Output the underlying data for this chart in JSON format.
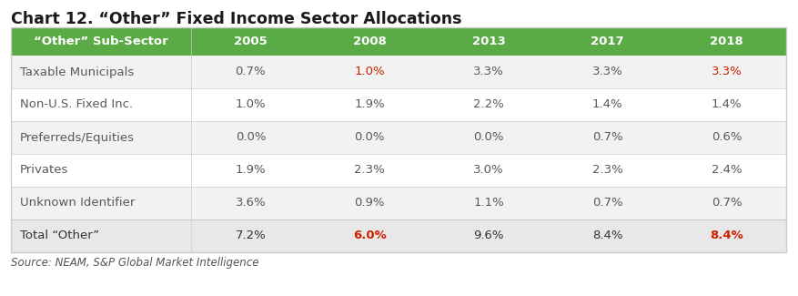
{
  "title": "Chart 12. “Other” Fixed Income Sector Allocations",
  "source": "Source: NEAM, S&P Global Market Intelligence",
  "col0_header": "“Other” Sub-Sector",
  "columns": [
    "2005",
    "2008",
    "2013",
    "2017",
    "2018"
  ],
  "rows": [
    {
      "label": "Taxable Municipals",
      "values": [
        "0.7%",
        "1.0%",
        "3.3%",
        "3.3%",
        "3.3%"
      ],
      "red_indices": [
        1,
        4
      ]
    },
    {
      "label": "Non-U.S. Fixed Inc.",
      "values": [
        "1.0%",
        "1.9%",
        "2.2%",
        "1.4%",
        "1.4%"
      ],
      "red_indices": []
    },
    {
      "label": "Preferreds/Equities",
      "values": [
        "0.0%",
        "0.0%",
        "0.0%",
        "0.7%",
        "0.6%"
      ],
      "red_indices": []
    },
    {
      "label": "Privates",
      "values": [
        "1.9%",
        "2.3%",
        "3.0%",
        "2.3%",
        "2.4%"
      ],
      "red_indices": []
    },
    {
      "label": "Unknown Identifier",
      "values": [
        "3.6%",
        "0.9%",
        "1.1%",
        "0.7%",
        "0.7%"
      ],
      "red_indices": []
    }
  ],
  "total_row": {
    "label": "Total “Other”",
    "values": [
      "7.2%",
      "6.0%",
      "9.6%",
      "8.4%",
      "8.4%"
    ],
    "red_indices": [
      1,
      4
    ]
  },
  "header_green": "#5aab46",
  "row_bg_light": "#f2f2f2",
  "row_bg_white": "#ffffff",
  "row_text_color": "#595959",
  "red_color": "#cc2200",
  "total_row_bg": "#e8e8e8",
  "total_row_text": "#333333",
  "border_color": "#cccccc",
  "title_fontsize": 12.5,
  "header_fontsize": 9.5,
  "cell_fontsize": 9.5,
  "source_fontsize": 8.5
}
